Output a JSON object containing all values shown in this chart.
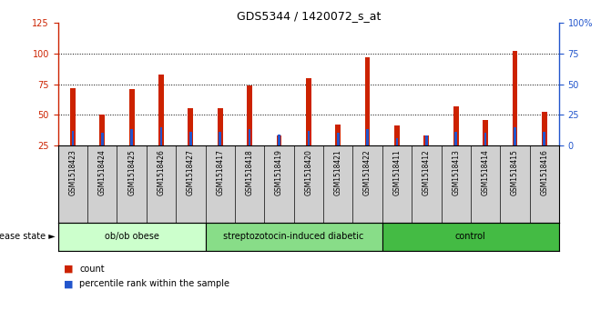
{
  "title": "GDS5344 / 1420072_s_at",
  "samples": [
    "GSM1518423",
    "GSM1518424",
    "GSM1518425",
    "GSM1518426",
    "GSM1518427",
    "GSM1518417",
    "GSM1518418",
    "GSM1518419",
    "GSM1518420",
    "GSM1518421",
    "GSM1518422",
    "GSM1518411",
    "GSM1518412",
    "GSM1518413",
    "GSM1518414",
    "GSM1518415",
    "GSM1518416"
  ],
  "count_values": [
    72,
    50,
    71,
    83,
    55,
    55,
    74,
    33,
    80,
    42,
    97,
    41,
    33,
    57,
    46,
    102,
    52
  ],
  "percentile_values": [
    37,
    35,
    38,
    40,
    36,
    36,
    38,
    34,
    37,
    35,
    38,
    31,
    33,
    36,
    35,
    40,
    36
  ],
  "groups": [
    {
      "label": "ob/ob obese",
      "start": 0,
      "end": 5,
      "color": "#ccffcc"
    },
    {
      "label": "streptozotocin-induced diabetic",
      "start": 5,
      "end": 11,
      "color": "#88dd88"
    },
    {
      "label": "control",
      "start": 11,
      "end": 17,
      "color": "#44bb44"
    }
  ],
  "ylim_left": [
    25,
    125
  ],
  "ylim_right": [
    0,
    100
  ],
  "yticks_left": [
    25,
    50,
    75,
    100,
    125
  ],
  "yticks_right": [
    0,
    25,
    50,
    75,
    100
  ],
  "ytick_labels_right": [
    "0",
    "25",
    "50",
    "75",
    "100%"
  ],
  "bar_color_red": "#cc2200",
  "bar_color_blue": "#2255cc",
  "bar_width": 0.18,
  "bg_color": "#d0d0d0",
  "left_axis_color": "#cc2200",
  "right_axis_color": "#2255cc",
  "disease_state_label": "disease state",
  "legend_count": "count",
  "legend_percentile": "percentile rank within the sample",
  "grid_dotted_at": [
    50,
    75,
    100
  ]
}
